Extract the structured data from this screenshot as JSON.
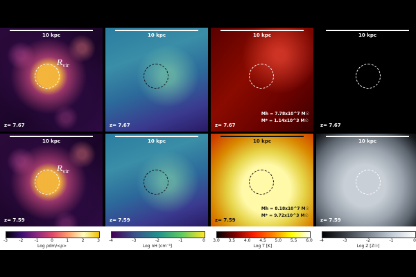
{
  "scale": "10 kpc",
  "rvir_label": "R",
  "rvir_sub": "vir",
  "rows": [
    {
      "z": "z= 7.67",
      "mass_h": "Mh = 7.78x10^7 M☉",
      "mass_s": "M* = 1.14x10^3 M☉"
    },
    {
      "z": "z= 7.59",
      "mass_h": "Mh = 8.18x10^7 M☉",
      "mass_s": "M* = 9.72x10^3 M☉"
    }
  ],
  "colorbars": [
    {
      "title": "Log ρdm/<ρ>",
      "ticks": [
        "-3",
        "-2",
        "-1",
        "0",
        "1",
        "2",
        "3"
      ],
      "gradient": [
        "#000004",
        "#3b0f70",
        "#8c2981",
        "#de4968",
        "#fe9f6d",
        "#fcfdbf",
        "#f0c000"
      ]
    },
    {
      "title": "Log nH [cm⁻³]",
      "ticks": [
        "-4",
        "-3",
        "-2",
        "-1",
        "0"
      ],
      "gradient": [
        "#440154",
        "#3b528b",
        "#21908d",
        "#5dc963",
        "#fde725"
      ]
    },
    {
      "title": "Log T [K]",
      "ticks": [
        "3.0",
        "3.5",
        "4.0",
        "4.5",
        "5.0",
        "5.5",
        "6.0"
      ],
      "gradient": [
        "#000000",
        "#800000",
        "#ff2000",
        "#ff8000",
        "#ffff00",
        "#ffffff"
      ]
    },
    {
      "title": "Log Z [Z☉]",
      "ticks": [
        "-4",
        "-3",
        "-2",
        "-1",
        "0"
      ],
      "gradient": [
        "#000000",
        "#3a3f46",
        "#7d8792",
        "#c3ccd6",
        "#ffffff"
      ]
    }
  ]
}
